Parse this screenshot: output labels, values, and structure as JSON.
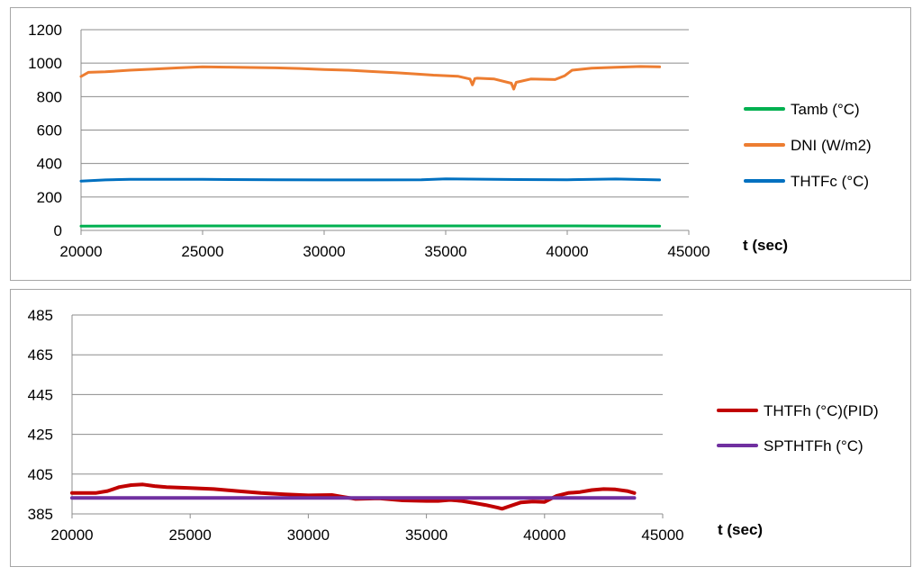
{
  "chart_data": [
    {
      "type": "line",
      "xlabel": "t (sec)",
      "xlim": [
        20000,
        45000
      ],
      "xticks": [
        20000,
        25000,
        30000,
        35000,
        40000,
        45000
      ],
      "ylim": [
        0,
        1200
      ],
      "yticks": [
        0,
        200,
        400,
        600,
        800,
        1000,
        1200
      ],
      "grid": "horizontal",
      "legend": "right",
      "series": [
        {
          "name": "Tamb (°C)",
          "color": "#00b050",
          "x": [
            20000,
            25000,
            30000,
            35000,
            40000,
            43800
          ],
          "y": [
            26,
            27,
            27,
            27,
            27,
            26
          ]
        },
        {
          "name": "DNI (W/m2)",
          "color": "#ed7d31",
          "x": [
            20000,
            20300,
            21000,
            22000,
            23000,
            24000,
            25000,
            26000,
            27000,
            28000,
            29000,
            30000,
            31000,
            32000,
            33000,
            33800,
            34500,
            35500,
            36000,
            36100,
            36200,
            36300,
            37000,
            37700,
            37800,
            37900,
            38500,
            39500,
            39900,
            40200,
            41000,
            42000,
            43000,
            43800
          ],
          "y": [
            920,
            945,
            948,
            958,
            965,
            972,
            978,
            976,
            974,
            972,
            968,
            962,
            958,
            950,
            942,
            935,
            928,
            922,
            905,
            870,
            908,
            910,
            905,
            880,
            845,
            885,
            905,
            902,
            925,
            958,
            970,
            975,
            980,
            978
          ]
        },
        {
          "name": "THTFc (°C)",
          "color": "#0070c0",
          "x": [
            20000,
            21000,
            22000,
            25000,
            28000,
            30000,
            32000,
            34000,
            35000,
            38000,
            40000,
            42000,
            43800
          ],
          "y": [
            295,
            302,
            305,
            305,
            303,
            302,
            302,
            303,
            308,
            304,
            303,
            307,
            302
          ]
        }
      ]
    },
    {
      "type": "line",
      "xlabel": "t (sec)",
      "xlim": [
        20000,
        45000
      ],
      "xticks": [
        20000,
        25000,
        30000,
        35000,
        40000,
        45000
      ],
      "ylim": [
        385,
        485
      ],
      "yticks": [
        385,
        405,
        425,
        445,
        465,
        485
      ],
      "grid": "horizontal",
      "legend": "right",
      "series": [
        {
          "name": "THTFh (°C)(PID)",
          "color": "#c00000",
          "x": [
            20000,
            21000,
            21500,
            22000,
            22500,
            23000,
            23500,
            24000,
            25000,
            26000,
            27000,
            28000,
            29000,
            30000,
            31000,
            31500,
            32000,
            33000,
            34000,
            35000,
            35500,
            36000,
            36500,
            37000,
            37500,
            38000,
            38200,
            38500,
            39000,
            39500,
            40000,
            40500,
            41000,
            41500,
            42000,
            42500,
            43000,
            43500,
            43800
          ],
          "y": [
            395.5,
            395.5,
            396.5,
            398.5,
            399.5,
            399.8,
            399,
            398.5,
            398,
            397.5,
            396.5,
            395.5,
            394.8,
            394.3,
            394.5,
            393.5,
            392.5,
            392.8,
            391.8,
            391.5,
            391.5,
            392,
            391.5,
            390.5,
            389.5,
            388.2,
            387.6,
            388.8,
            390.8,
            391.2,
            391,
            394,
            395.5,
            396,
            397,
            397.5,
            397.3,
            396.5,
            395.5
          ]
        },
        {
          "name": "SPTHTFh (°C)",
          "color": "#7030a0",
          "x": [
            20000,
            43800
          ],
          "y": [
            393,
            393
          ]
        }
      ]
    }
  ]
}
